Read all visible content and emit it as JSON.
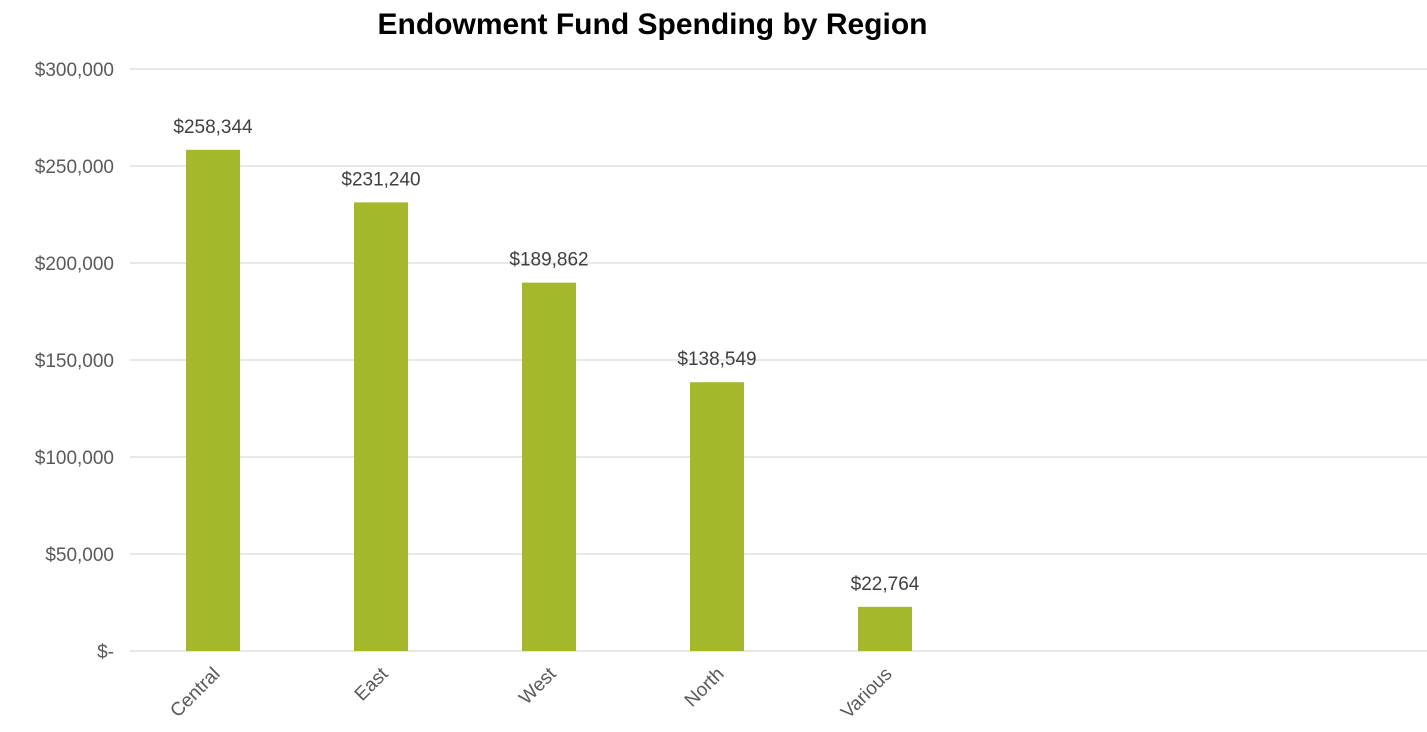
{
  "chart_data": {
    "type": "bar",
    "title": "Endowment Fund Spending by Region",
    "categories": [
      "Central",
      "East",
      "West",
      "North",
      "Various"
    ],
    "values": [
      258344,
      231240,
      189862,
      138549,
      22764
    ],
    "data_labels": [
      "$258,344",
      "$231,240",
      "$189,862",
      "$138,549",
      "$22,764"
    ],
    "y_ticks": [
      0,
      50000,
      100000,
      150000,
      200000,
      250000,
      300000
    ],
    "y_tick_labels": [
      "$-",
      "$50,000",
      "$100,000",
      "$150,000",
      "$200,000",
      "$250,000",
      "$300,000"
    ],
    "ylim": [
      0,
      300000
    ],
    "grid": true,
    "legend": "none",
    "bar_color": "#A5B82B",
    "grid_color": "#D9D9D9"
  }
}
